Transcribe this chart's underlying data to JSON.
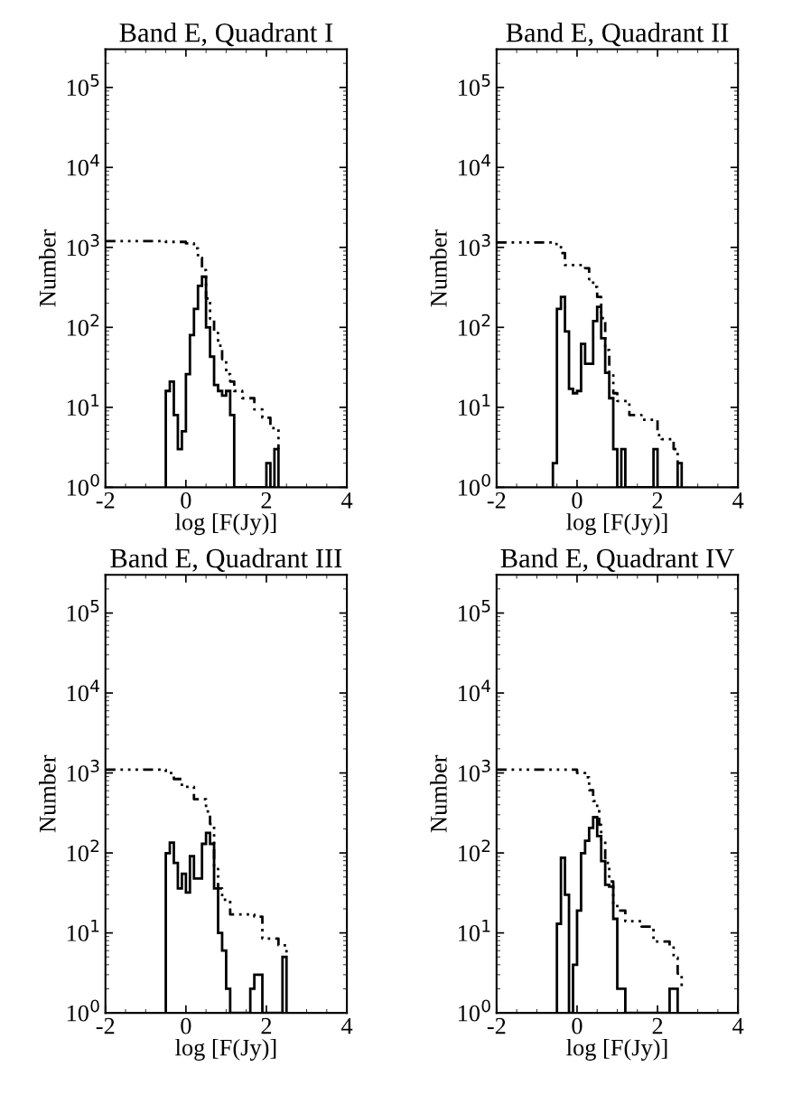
{
  "chart_data": [
    {
      "type": "histogram",
      "title": "Band E, Quadrant I",
      "xlabel": "log [F(Jy)]",
      "ylabel": "Number",
      "log": "y",
      "xlim": [
        -2,
        4
      ],
      "xticks": [
        -2,
        0,
        2,
        4
      ],
      "ylim": [
        1,
        300000
      ],
      "yticks": [
        {
          "value": 1,
          "label": "10$^{0}$"
        },
        {
          "value": 10,
          "label": "10$^{1}$"
        },
        {
          "value": 100,
          "label": "10$^{2}$"
        },
        {
          "value": 1000,
          "label": "10$^{3}$"
        },
        {
          "value": 10000,
          "label": "10$^{4}$"
        },
        {
          "value": 100000,
          "label": "10$^{5}$"
        }
      ],
      "grid": false,
      "legend": false,
      "series": [
        {
          "type": "histogram",
          "color": "#000000",
          "line_style": "solid",
          "bins": [
            -0.5,
            -0.4,
            -0.3,
            -0.2,
            -0.1,
            0.0,
            0.1,
            0.2,
            0.3,
            0.4,
            0.5,
            0.6,
            0.7,
            0.8,
            0.9,
            1.0,
            1.1,
            1.2,
            1.3,
            1.4,
            1.5,
            1.6,
            1.7,
            1.8,
            1.9,
            2.0,
            2.1,
            2.2,
            2.3
          ],
          "values": [
            16,
            21,
            8,
            3,
            5,
            26,
            80,
            170,
            330,
            430,
            100,
            43,
            19,
            16,
            14,
            16,
            8,
            null,
            null,
            null,
            null,
            null,
            null,
            null,
            null,
            2,
            null,
            3
          ]
        },
        {
          "type": "step",
          "color": "#000000",
          "line_style": "dotted",
          "x": [
            -2,
            -0.5,
            0.0,
            0.2,
            0.3,
            0.4,
            0.5,
            0.6,
            0.7,
            0.8,
            0.9,
            1.0,
            1.1,
            1.2,
            1.4,
            1.7,
            1.9,
            2.1,
            2.3
          ],
          "values": [
            1200,
            1170,
            1120,
            975,
            740,
            520,
            230,
            128,
            85,
            59,
            40,
            26,
            21,
            16,
            13,
            9.4,
            7.4,
            5.5,
            3
          ]
        }
      ]
    },
    {
      "type": "histogram",
      "title": "Band E, Quadrant II",
      "xlabel": "log [F(Jy)]",
      "ylabel": "Number",
      "log": "y",
      "xlim": [
        -2,
        4
      ],
      "xticks": [
        -2,
        0,
        2,
        4
      ],
      "ylim": [
        1,
        300000
      ],
      "yticks": [
        {
          "value": 1,
          "label": "10$^{0}$"
        },
        {
          "value": 10,
          "label": "10$^{1}$"
        },
        {
          "value": 100,
          "label": "10$^{2}$"
        },
        {
          "value": 1000,
          "label": "10$^{3}$"
        },
        {
          "value": 10000,
          "label": "10$^{4}$"
        },
        {
          "value": 100000,
          "label": "10$^{5}$"
        }
      ],
      "grid": false,
      "legend": false,
      "series": [
        {
          "type": "histogram",
          "color": "#000000",
          "line_style": "solid",
          "bins": [
            -0.6,
            -0.5,
            -0.4,
            -0.3,
            -0.2,
            -0.1,
            0.0,
            0.1,
            0.2,
            0.3,
            0.4,
            0.5,
            0.6,
            0.7,
            0.8,
            0.9,
            1.0,
            1.1,
            1.2,
            1.3,
            1.4,
            1.5,
            1.6,
            1.7,
            1.8,
            1.9,
            2.0,
            2.1,
            2.2,
            2.3,
            2.4,
            2.5,
            2.6
          ],
          "values": [
            2,
            170,
            240,
            89,
            17,
            15,
            16,
            62,
            35,
            35,
            120,
            180,
            73,
            27,
            13,
            3,
            null,
            3,
            null,
            null,
            null,
            null,
            null,
            null,
            null,
            3,
            null,
            null,
            null,
            null,
            null,
            2
          ]
        },
        {
          "type": "step",
          "color": "#000000",
          "line_style": "dotted",
          "x": [
            -2,
            -0.6,
            -0.4,
            -0.3,
            0.2,
            0.3,
            0.4,
            0.5,
            0.6,
            0.7,
            0.8,
            0.9,
            1.0,
            1.3,
            1.6,
            2.0,
            2.1,
            2.4,
            2.5,
            2.6
          ],
          "values": [
            1150,
            1100,
            850,
            600,
            550,
            400,
            320,
            240,
            130,
            52,
            27,
            15,
            12,
            8,
            7,
            4.5,
            4,
            3,
            2,
            2
          ]
        }
      ]
    },
    {
      "type": "histogram",
      "title": "Band E, Quadrant III",
      "xlabel": "log [F(Jy)]",
      "ylabel": "Number",
      "log": "y",
      "xlim": [
        -2,
        4
      ],
      "xticks": [
        -2,
        0,
        2,
        4
      ],
      "ylim": [
        1,
        300000
      ],
      "yticks": [
        {
          "value": 1,
          "label": "10$^{0}$"
        },
        {
          "value": 10,
          "label": "10$^{1}$"
        },
        {
          "value": 100,
          "label": "10$^{2}$"
        },
        {
          "value": 1000,
          "label": "10$^{3}$"
        },
        {
          "value": 10000,
          "label": "10$^{4}$"
        },
        {
          "value": 100000,
          "label": "10$^{5}$"
        }
      ],
      "grid": false,
      "legend": false,
      "series": [
        {
          "type": "histogram",
          "color": "#000000",
          "line_style": "solid",
          "bins": [
            -0.5,
            -0.4,
            -0.3,
            -0.2,
            -0.1,
            0.0,
            0.1,
            0.2,
            0.3,
            0.4,
            0.5,
            0.6,
            0.7,
            0.8,
            0.9,
            1.0,
            1.1,
            1.2,
            1.3,
            1.4,
            1.5,
            1.6,
            1.7,
            1.8,
            1.9,
            2.0,
            2.1,
            2.2,
            2.3,
            2.4,
            2.5
          ],
          "values": [
            99,
            135,
            75,
            36,
            55,
            32,
            91,
            48,
            48,
            130,
            178,
            130,
            36,
            10,
            6,
            2,
            null,
            null,
            null,
            null,
            null,
            2,
            3,
            3,
            null,
            null,
            null,
            null,
            null,
            5
          ]
        },
        {
          "type": "step",
          "color": "#000000",
          "line_style": "dotted",
          "x": [
            -2,
            -0.5,
            -0.3,
            -0.1,
            0.2,
            0.5,
            0.6,
            0.7,
            0.8,
            0.9,
            1.1,
            1.7,
            1.9,
            2.3,
            2.5
          ],
          "values": [
            1100,
            1000,
            840,
            670,
            470,
            330,
            230,
            63,
            36,
            26,
            17,
            16,
            8.5,
            7,
            5
          ]
        }
      ]
    },
    {
      "type": "histogram",
      "title": "Band E, Quadrant IV",
      "xlabel": "log [F(Jy)]",
      "ylabel": "Number",
      "log": "y",
      "xlim": [
        -2,
        4
      ],
      "xticks": [
        -2,
        0,
        2,
        4
      ],
      "ylim": [
        1,
        300000
      ],
      "yticks": [
        {
          "value": 1,
          "label": "10$^{0}$"
        },
        {
          "value": 10,
          "label": "10$^{1}$"
        },
        {
          "value": 100,
          "label": "10$^{2}$"
        },
        {
          "value": 1000,
          "label": "10$^{3}$"
        },
        {
          "value": 10000,
          "label": "10$^{4}$"
        },
        {
          "value": 100000,
          "label": "10$^{5}$"
        }
      ],
      "grid": false,
      "legend": false,
      "series": [
        {
          "type": "histogram",
          "color": "#000000",
          "line_style": "solid",
          "bins": [
            -0.5,
            -0.4,
            -0.3,
            -0.2,
            -0.1,
            0.0,
            0.1,
            0.2,
            0.3,
            0.4,
            0.5,
            0.6,
            0.7,
            0.8,
            0.9,
            1.0,
            1.1,
            1.2,
            1.3,
            1.4,
            1.5,
            1.6,
            1.7,
            1.8,
            1.9,
            2.0,
            2.1,
            2.2,
            2.3,
            2.4,
            2.5
          ],
          "values": [
            13,
            87,
            30,
            null,
            4,
            19,
            99,
            142,
            205,
            280,
            163,
            79,
            40,
            38,
            15,
            2,
            2,
            null,
            null,
            null,
            null,
            null,
            null,
            null,
            null,
            null,
            null,
            null,
            2,
            2
          ]
        },
        {
          "type": "step",
          "color": "#000000",
          "line_style": "dotted",
          "x": [
            -2,
            0.0,
            0.2,
            0.3,
            0.4,
            0.5,
            0.55,
            0.6,
            0.7,
            0.8,
            0.9,
            1.0,
            1.2,
            1.6,
            1.9,
            2.3,
            2.4,
            2.5,
            2.6
          ],
          "values": [
            1100,
            1000,
            880,
            610,
            445,
            355,
            225,
            142,
            75,
            44,
            23,
            19,
            14,
            12,
            7.8,
            6.8,
            4.9,
            3.1,
            2
          ]
        }
      ]
    }
  ]
}
